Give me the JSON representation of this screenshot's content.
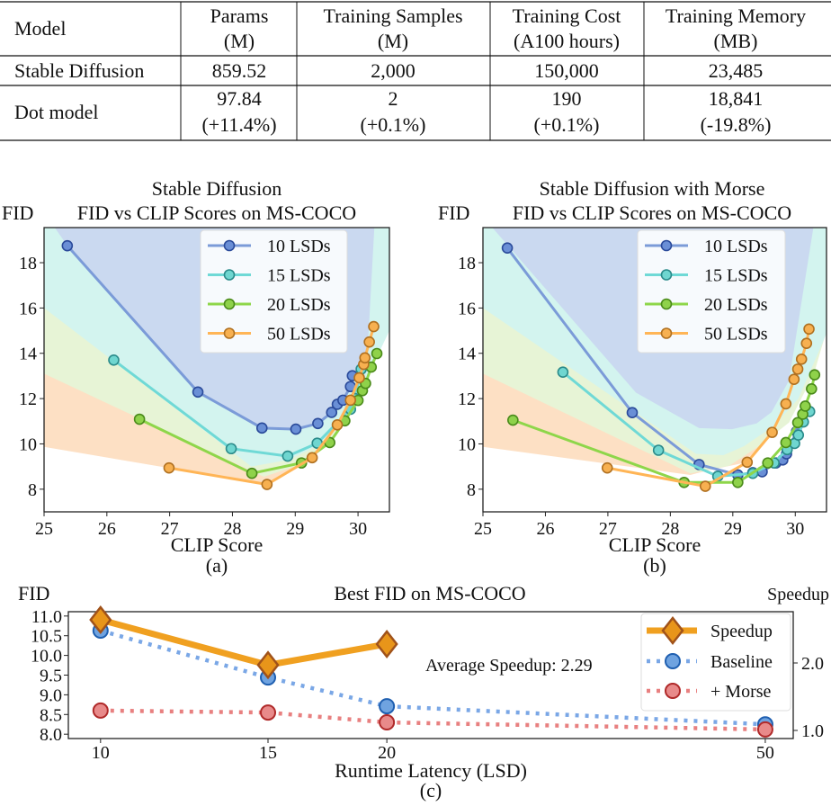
{
  "table": {
    "headers": [
      {
        "line1": "Model",
        "line2": ""
      },
      {
        "line1": "Params",
        "line2": "(M)"
      },
      {
        "line1": "Training Samples",
        "line2": "(M)"
      },
      {
        "line1": "Training Cost",
        "line2": "(A100 hours)"
      },
      {
        "line1": "Training Memory",
        "line2": "(MB)"
      }
    ],
    "rows": [
      {
        "model": "Stable Diffusion",
        "cells": [
          {
            "v": "859.52",
            "d": ""
          },
          {
            "v": "2,000",
            "d": ""
          },
          {
            "v": "150,000",
            "d": ""
          },
          {
            "v": "23,485",
            "d": ""
          }
        ]
      },
      {
        "model": "Dot model",
        "cells": [
          {
            "v": "97.84",
            "d": "(+11.4%)"
          },
          {
            "v": "2",
            "d": "(+0.1%)"
          },
          {
            "v": "190",
            "d": "(+0.1%)"
          },
          {
            "v": "18,841",
            "d": "(-19.8%)"
          }
        ]
      }
    ]
  },
  "chart_data": [
    {
      "type": "line",
      "panel_label": "(a)",
      "title": [
        "Stable Diffusion",
        "FID vs CLIP Scores on MS-COCO"
      ],
      "ylabel": "FID",
      "xlabel": "CLIP Score",
      "xlim": [
        25,
        30.5
      ],
      "ylim": [
        7,
        19.55
      ],
      "xticks": [
        25,
        26,
        27,
        28,
        29,
        30
      ],
      "yticks": [
        8,
        10,
        12,
        14,
        16,
        18
      ],
      "legend": "top-right",
      "series": [
        {
          "name": "10 LSDs",
          "color": "#7b9bd8",
          "marker": "#6a8fd6",
          "edge": "#2a4a9a",
          "points": [
            [
              25.37,
              18.75
            ],
            [
              27.45,
              12.29
            ],
            [
              28.47,
              10.7
            ],
            [
              29.01,
              10.65
            ],
            [
              29.36,
              10.9
            ],
            [
              29.58,
              11.39
            ],
            [
              29.67,
              11.75
            ],
            [
              29.76,
              11.93
            ],
            [
              29.88,
              12.53
            ],
            [
              29.91,
              13.01
            ]
          ]
        },
        {
          "name": "15 LSDs",
          "color": "#6fd9d6",
          "marker": "#6fd6d0",
          "edge": "#2a8a8a",
          "points": [
            [
              26.11,
              13.7
            ],
            [
              27.98,
              9.79
            ],
            [
              28.88,
              9.46
            ],
            [
              29.35,
              10.03
            ],
            [
              29.88,
              11.53
            ],
            [
              29.95,
              12.0
            ],
            [
              30.05,
              13.3
            ]
          ]
        },
        {
          "name": "20 LSDs",
          "color": "#8ed64a",
          "marker": "#8fd24a",
          "edge": "#4a8a1a",
          "points": [
            [
              26.52,
              11.09
            ],
            [
              28.31,
              8.7
            ],
            [
              29.1,
              9.16
            ],
            [
              29.55,
              10.06
            ],
            [
              29.79,
              11.02
            ],
            [
              30.0,
              11.92
            ],
            [
              30.07,
              12.35
            ],
            [
              30.12,
              12.67
            ],
            [
              30.21,
              13.39
            ],
            [
              30.3,
              13.99
            ]
          ]
        },
        {
          "name": "50 LSDs",
          "color": "#ffb556",
          "marker": "#f7b050",
          "edge": "#b07020",
          "points": [
            [
              26.99,
              8.94
            ],
            [
              28.55,
              8.21
            ],
            [
              29.27,
              9.39
            ],
            [
              29.67,
              10.84
            ],
            [
              29.88,
              11.93
            ],
            [
              30.02,
              12.92
            ],
            [
              30.09,
              13.51
            ],
            [
              30.11,
              13.8
            ],
            [
              30.18,
              14.5
            ],
            [
              30.25,
              15.18
            ]
          ]
        }
      ],
      "shaded_regions": [
        {
          "color": "#fde0c4",
          "lower": [
            [
              25,
              9.87
            ],
            [
              28.55,
              8.2
            ],
            [
              29.27,
              9.4
            ],
            [
              29.67,
              10.85
            ],
            [
              29.9,
              12.0
            ],
            [
              30.1,
              13.6
            ],
            [
              30.25,
              15.2
            ],
            [
              30.5,
              15.0
            ]
          ]
        },
        {
          "color": "#e7f4d6",
          "lower": [
            [
              25,
              13.1
            ],
            [
              28.5,
              8.55
            ],
            [
              29.1,
              9.1
            ],
            [
              29.55,
              10.0
            ],
            [
              29.8,
              11.0
            ],
            [
              30.1,
              12.6
            ],
            [
              30.3,
              14.0
            ],
            [
              30.5,
              15.0
            ]
          ]
        },
        {
          "color": "#d3f4ef",
          "lower": [
            [
              25,
              16.0
            ],
            [
              28.3,
              9.0
            ],
            [
              28.9,
              9.3
            ],
            [
              29.35,
              9.9
            ],
            [
              29.9,
              11.5
            ],
            [
              30.5,
              15.0
            ]
          ]
        },
        {
          "color": "#cad9f0",
          "lower": [
            [
              25.17,
              19.55
            ],
            [
              25.37,
              18.75
            ],
            [
              27.45,
              12.29
            ],
            [
              28.47,
              10.7
            ],
            [
              29.01,
              10.65
            ],
            [
              29.36,
              10.9
            ],
            [
              29.9,
              12.5
            ],
            [
              30.15,
              14.0
            ],
            [
              30.26,
              19.55
            ]
          ]
        }
      ]
    },
    {
      "type": "line",
      "panel_label": "(b)",
      "title": [
        "Stable Diffusion with Morse",
        "FID vs CLIP Scores on MS-COCO"
      ],
      "ylabel": "FID",
      "xlabel": "CLIP Score",
      "xlim": [
        25,
        30.5
      ],
      "ylim": [
        7,
        19.55
      ],
      "xticks": [
        25,
        26,
        27,
        28,
        29,
        30
      ],
      "yticks": [
        8,
        10,
        12,
        14,
        16,
        18
      ],
      "legend": "top-right",
      "series": [
        {
          "name": "10 LSDs",
          "color": "#7b9bd8",
          "marker": "#6a8fd6",
          "edge": "#2a4a9a",
          "points": [
            [
              25.39,
              18.65
            ],
            [
              27.39,
              11.38
            ],
            [
              28.46,
              9.09
            ],
            [
              29.08,
              8.63
            ],
            [
              29.32,
              8.73
            ],
            [
              29.47,
              8.77
            ],
            [
              29.69,
              9.16
            ],
            [
              29.8,
              9.29
            ],
            [
              29.86,
              9.56
            ],
            [
              30.02,
              10.55
            ]
          ]
        },
        {
          "name": "15 LSDs",
          "color": "#6fd9d6",
          "marker": "#6fd6d0",
          "edge": "#2a8a8a",
          "points": [
            [
              26.28,
              13.17
            ],
            [
              27.81,
              9.72
            ],
            [
              28.76,
              8.57
            ],
            [
              29.32,
              8.7
            ],
            [
              29.66,
              9.16
            ],
            [
              29.87,
              9.75
            ],
            [
              29.99,
              10.02
            ],
            [
              30.05,
              10.39
            ],
            [
              30.13,
              10.97
            ],
            [
              30.23,
              11.43
            ]
          ]
        },
        {
          "name": "20 LSDs",
          "color": "#8ed64a",
          "marker": "#8fd24a",
          "edge": "#4a8a1a",
          "points": [
            [
              25.48,
              11.05
            ],
            [
              28.22,
              8.3
            ],
            [
              29.08,
              8.3
            ],
            [
              29.56,
              9.16
            ],
            [
              29.85,
              10.06
            ],
            [
              30.04,
              10.94
            ],
            [
              30.12,
              11.31
            ],
            [
              30.16,
              11.67
            ],
            [
              30.26,
              12.43
            ],
            [
              30.31,
              13.05
            ]
          ]
        },
        {
          "name": "50 LSDs",
          "color": "#ffb556",
          "marker": "#f7b050",
          "edge": "#b07020",
          "points": [
            [
              26.99,
              8.94
            ],
            [
              28.56,
              8.13
            ],
            [
              29.23,
              9.19
            ],
            [
              29.63,
              10.51
            ],
            [
              29.85,
              11.77
            ],
            [
              29.98,
              12.85
            ],
            [
              30.04,
              13.3
            ],
            [
              30.1,
              13.74
            ],
            [
              30.18,
              14.44
            ],
            [
              30.22,
              15.07
            ]
          ]
        }
      ],
      "shaded_regions": [
        {
          "color": "#fde0c4",
          "lower": [
            [
              25,
              9.87
            ],
            [
              28.32,
              8.63
            ],
            [
              28.6,
              8.83
            ],
            [
              29.18,
              9.16
            ],
            [
              29.63,
              10.5
            ],
            [
              29.85,
              11.8
            ],
            [
              30.04,
              13.3
            ],
            [
              30.22,
              15.1
            ],
            [
              30.5,
              15.0
            ]
          ]
        },
        {
          "color": "#e7f4d6",
          "lower": [
            [
              25,
              13.1
            ],
            [
              28.32,
              8.7
            ],
            [
              28.94,
              9.03
            ],
            [
              29.42,
              9.9
            ],
            [
              29.9,
              10.94
            ],
            [
              30.3,
              13.1
            ],
            [
              30.5,
              15.0
            ]
          ]
        },
        {
          "color": "#d3f4ef",
          "lower": [
            [
              25,
              16.0
            ],
            [
              28.41,
              9.56
            ],
            [
              28.85,
              9.5
            ],
            [
              29.18,
              9.9
            ],
            [
              29.66,
              10.8
            ],
            [
              30.05,
              12.0
            ],
            [
              30.52,
              15.0
            ]
          ]
        },
        {
          "color": "#cad9f0",
          "lower": [
            [
              25.15,
              19.55
            ],
            [
              27.45,
              12.26
            ],
            [
              28.46,
              10.7
            ],
            [
              28.99,
              10.65
            ],
            [
              29.38,
              10.9
            ],
            [
              29.62,
              11.4
            ],
            [
              29.9,
              12.8
            ],
            [
              30.29,
              19.55
            ]
          ]
        }
      ]
    },
    {
      "type": "line",
      "panel_label": "(c)",
      "title": "Best FID on MS-COCO",
      "ylabel": "FID",
      "y2label": "Speedup",
      "xlabel": "Runtime Latency (LSD)",
      "xscale": "log",
      "x": [
        10,
        15,
        20,
        50
      ],
      "xticks": [
        "10",
        "15",
        "20",
        "50"
      ],
      "xlim": [
        9.25,
        53.5
      ],
      "ylim": [
        7.89,
        11.11
      ],
      "yticks": [
        "8.0",
        "8.5",
        "9.0",
        "9.5",
        "10.0",
        "10.5",
        "11.0"
      ],
      "y2lim": [
        0.88,
        2.76
      ],
      "y2ticks": [
        "1.0",
        "2.0"
      ],
      "legend": "right",
      "annotation": "Average Speedup: 2.29",
      "series": [
        {
          "name": "Speedup",
          "axis": "right",
          "style": "solid-diamond",
          "color": "#f0a020",
          "marker": "#e8951a",
          "edge": "#a0521a",
          "x": [
            10,
            15,
            20
          ],
          "values": [
            2.64,
            1.97,
            2.28
          ]
        },
        {
          "name": "Baseline",
          "axis": "left",
          "style": "dotted-circle",
          "color": "#7aa7e6",
          "marker": "#6fa3e0",
          "edge": "#1f5fb0",
          "x": [
            10,
            15,
            20,
            50
          ],
          "values": [
            10.63,
            9.44,
            8.71,
            8.25
          ]
        },
        {
          "name": "+ Morse",
          "axis": "left",
          "style": "dotted-circle",
          "color": "#e88080",
          "marker": "#e88a8a",
          "edge": "#b02a2a",
          "x": [
            10,
            15,
            20,
            50
          ],
          "values": [
            8.6,
            8.55,
            8.3,
            8.12
          ]
        }
      ]
    }
  ]
}
